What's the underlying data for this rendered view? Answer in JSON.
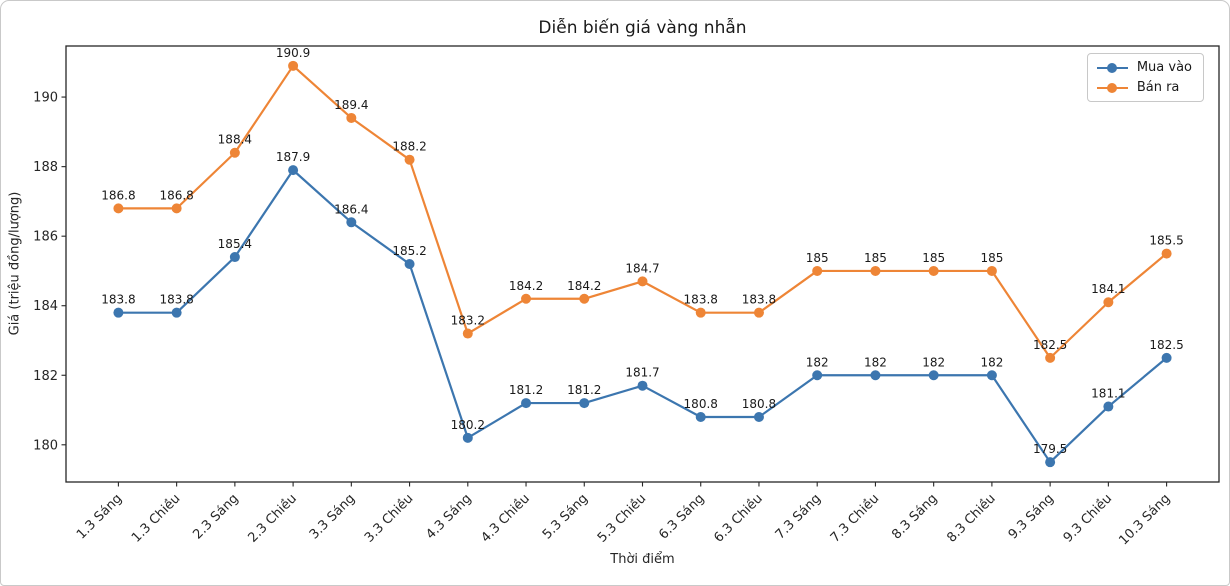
{
  "figure": {
    "background": "#ffffff",
    "border_color": "#c9c9c9"
  },
  "chart_data": {
    "type": "line",
    "title": "Diễn biến giá vàng nhẫn",
    "xlabel": "Thời điểm",
    "ylabel": "Giá (triệu đồng/lượng)",
    "categories": [
      "1.3 Sáng",
      "1.3 Chiều",
      "2.3 Sáng",
      "2.3 Chiều",
      "3.3 Sáng",
      "3.3 Chiều",
      "4.3 Sáng",
      "4.3 Chiều",
      "5.3 Sáng",
      "5.3 Chiều",
      "6.3 Sáng",
      "6.3 Chiều",
      "7.3 Sáng",
      "7.3 Chiều",
      "8.3 Sáng",
      "8.3 Chiều",
      "9.3 Sáng",
      "9.3 Chiều",
      "10.3 Sáng"
    ],
    "series": [
      {
        "name": "Mua vào",
        "color": "#3c76af",
        "values": [
          183.8,
          183.8,
          185.4,
          187.9,
          186.4,
          185.2,
          180.2,
          181.2,
          181.2,
          181.7,
          180.8,
          180.8,
          182,
          182,
          182,
          182,
          179.5,
          181.1,
          182.5
        ]
      },
      {
        "name": "Bán ra",
        "color": "#ee8536",
        "values": [
          186.8,
          186.8,
          188.4,
          190.9,
          189.4,
          188.2,
          183.2,
          184.2,
          184.2,
          184.7,
          183.8,
          183.8,
          185,
          185,
          185,
          185,
          182.5,
          184.1,
          185.5
        ]
      }
    ],
    "yticks": [
      180,
      182,
      184,
      186,
      188,
      190
    ],
    "ylim": [
      178.93,
      191.47
    ],
    "grid": false,
    "legend_position": "upper right",
    "point_labels": true,
    "axis_color": "#262626",
    "tick_label_color": "#262626",
    "point_label_color": "#1a1a1a"
  }
}
